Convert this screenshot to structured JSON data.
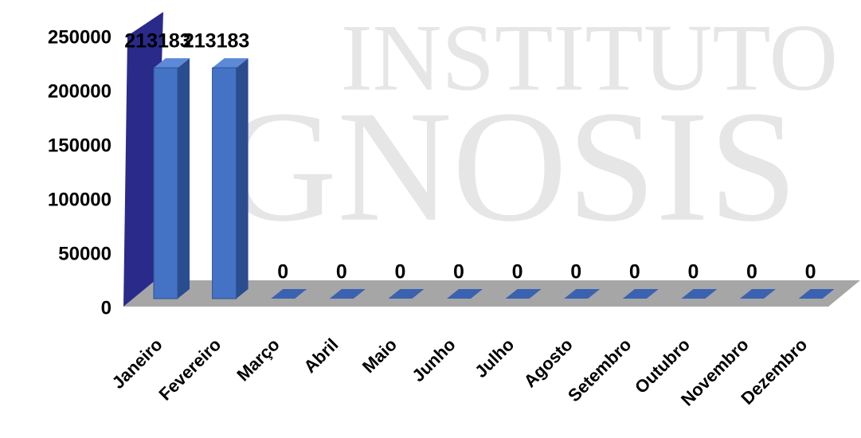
{
  "watermark": [
    "INSTITUTO",
    "GNOSIS"
  ],
  "chart_data": {
    "type": "bar",
    "categories": [
      "Janeiro",
      "Fevereiro",
      "Março",
      "Abril",
      "Maio",
      "Junho",
      "Julho",
      "Agosto",
      "Setembro",
      "Outubro",
      "Novembro",
      "Dezembro"
    ],
    "values": [
      213183,
      213183,
      0,
      0,
      0,
      0,
      0,
      0,
      0,
      0,
      0,
      0
    ],
    "color": "#4472c4",
    "ylim": [
      0,
      250000
    ],
    "yticks": [
      0,
      50000,
      100000,
      150000,
      200000,
      250000
    ],
    "grid": false
  }
}
